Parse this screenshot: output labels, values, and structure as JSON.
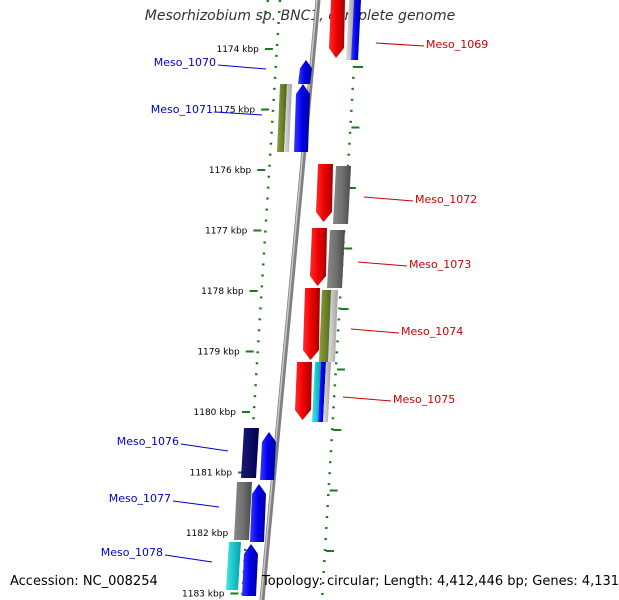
{
  "title": "Mesorhizobium sp. BNC1, complete genome",
  "footer": {
    "accession": "Accession: NC_008254",
    "stats": "Topology: circular; Length: 4,412,446 bp; Genes: 4,131"
  },
  "colors": {
    "minus_strand_label": "#0000cc",
    "plus_strand_label": "#cc0000",
    "axis": "#888888",
    "ticks": "#1a7a1a"
  },
  "scale_ticks": [
    {
      "label": "1174 kbp",
      "kbp": 1174
    },
    {
      "label": "1175 kbp",
      "kbp": 1175
    },
    {
      "label": "1176 kbp",
      "kbp": 1176
    },
    {
      "label": "1177 kbp",
      "kbp": 1177
    },
    {
      "label": "1178 kbp",
      "kbp": 1178
    },
    {
      "label": "1179 kbp",
      "kbp": 1179
    },
    {
      "label": "1180 kbp",
      "kbp": 1180
    },
    {
      "label": "1181 kbp",
      "kbp": 1181
    },
    {
      "label": "1182 kbp",
      "kbp": 1182
    },
    {
      "label": "1183 kbp",
      "kbp": 1183
    }
  ],
  "genes": [
    {
      "name": "Meso_1069",
      "strand": "+"
    },
    {
      "name": "Meso_1070",
      "strand": "-"
    },
    {
      "name": "Meso_1071",
      "strand": "-"
    },
    {
      "name": "Meso_1072",
      "strand": "+"
    },
    {
      "name": "Meso_1073",
      "strand": "+"
    },
    {
      "name": "Meso_1074",
      "strand": "+"
    },
    {
      "name": "Meso_1075",
      "strand": "+"
    },
    {
      "name": "Meso_1076",
      "strand": "-"
    },
    {
      "name": "Meso_1077",
      "strand": "-"
    },
    {
      "name": "Meso_1078",
      "strand": "-"
    }
  ]
}
